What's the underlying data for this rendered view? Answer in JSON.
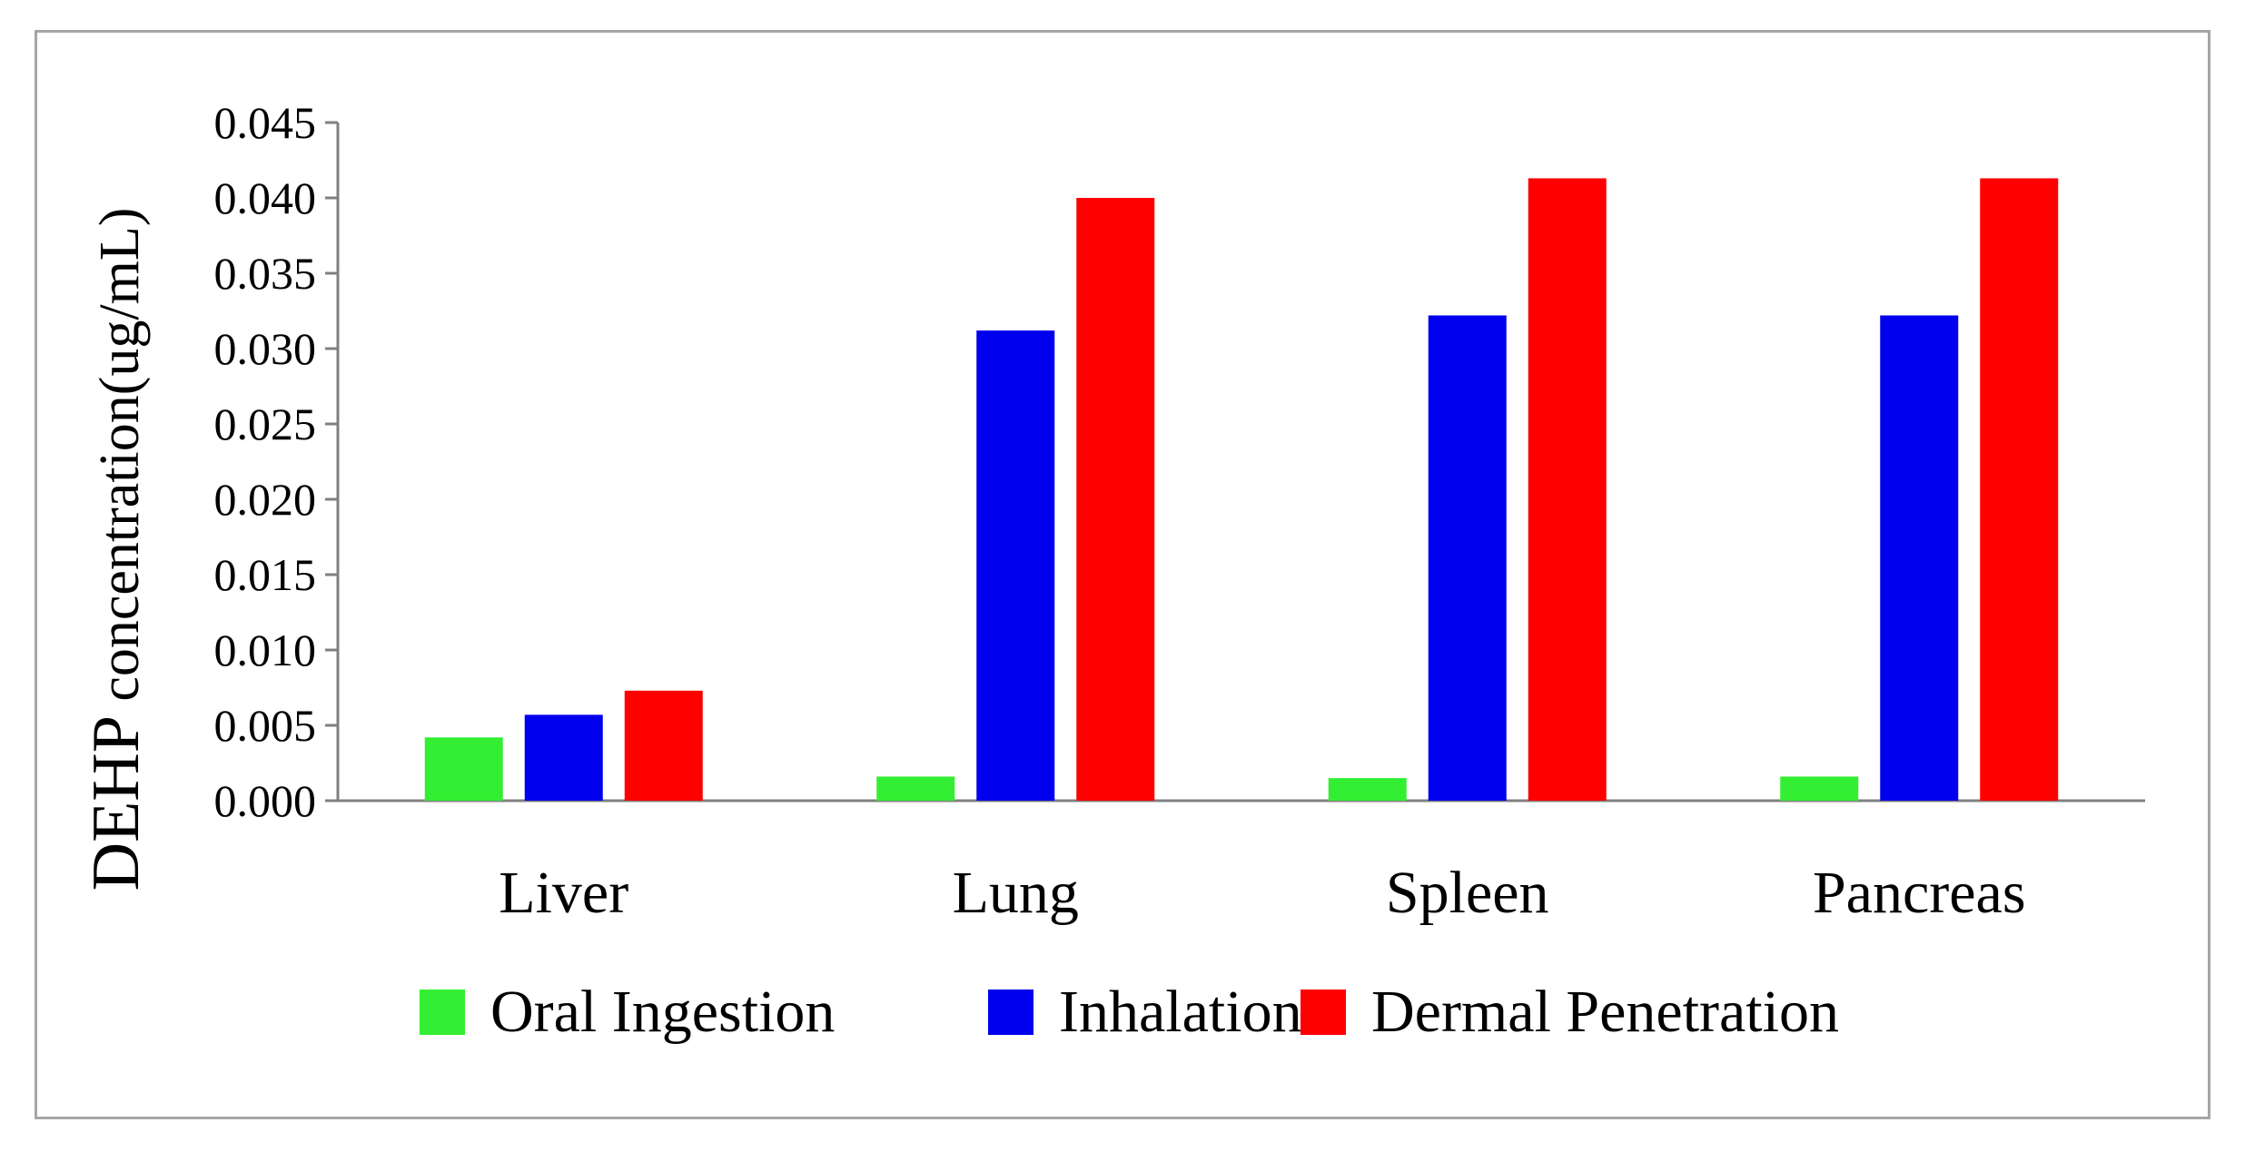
{
  "chart_data": {
    "type": "bar",
    "title": "",
    "xlabel": "",
    "ylabel_prefix": "DEHP",
    "ylabel_rest": " concentration(ug/mL)",
    "ylim": [
      0,
      0.045
    ],
    "yticks": [
      "0.000",
      "0.005",
      "0.010",
      "0.015",
      "0.020",
      "0.025",
      "0.030",
      "0.035",
      "0.040",
      "0.045"
    ],
    "categories": [
      "Liver",
      "Lung",
      "Spleen",
      "Pancreas"
    ],
    "series": [
      {
        "name": "Oral Ingestion",
        "color": "#33ee33",
        "values": [
          0.0042,
          0.0016,
          0.0015,
          0.0016
        ]
      },
      {
        "name": "Inhalation",
        "color": "#0000ee",
        "values": [
          0.0057,
          0.0312,
          0.0322,
          0.0322
        ]
      },
      {
        "name": "Dermal Penetration",
        "color": "#ff0000",
        "values": [
          0.0073,
          0.04,
          0.0413,
          0.0413
        ]
      }
    ],
    "grid": false,
    "legend": "bottom"
  }
}
